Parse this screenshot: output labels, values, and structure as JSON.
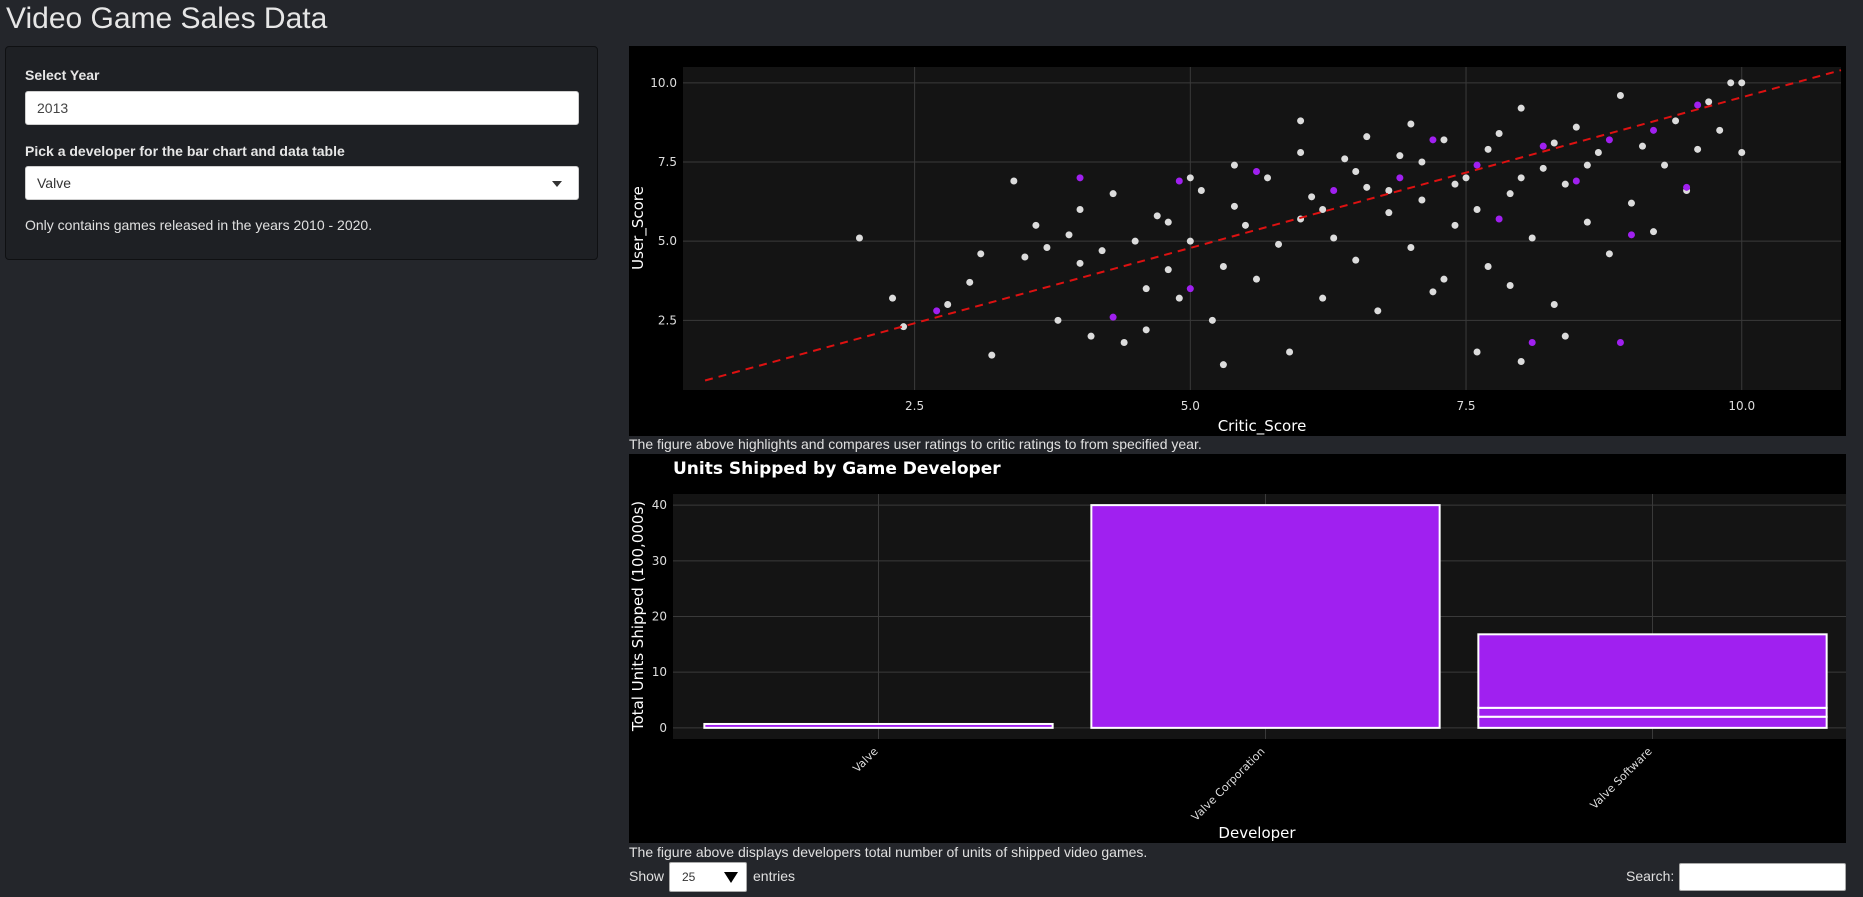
{
  "app": {
    "title": "Video Game Sales Data"
  },
  "sidebar": {
    "year_label": "Select Year",
    "year_value": "2013",
    "developer_label": "Pick a developer for the bar chart and data table",
    "developer_value": "Valve",
    "note": "Only contains games released in the years 2010 - 2020."
  },
  "captions": {
    "scatter": "The figure above highlights and compares user ratings to critic ratings to from specified year.",
    "bar": "The figure above displays developers total number of units of shipped video games."
  },
  "table_controls": {
    "show_label": "Show",
    "length_value": "25",
    "entries_label": "entries",
    "search_label": "Search:"
  },
  "colors": {
    "background": "#24262b",
    "plot_bg": "#141414",
    "accent_purple": "#a020f0",
    "points": "#d9d9d9",
    "trend": "#dd1111"
  },
  "chart_data": [
    {
      "type": "scatter",
      "xlabel": "Critic_Score",
      "ylabel": "User_Score",
      "xlim": [
        0.4,
        10.9
      ],
      "ylim": [
        0.3,
        10.5
      ],
      "xticks": [
        "2.5",
        "5.0",
        "7.5",
        "10.0"
      ],
      "yticks": [
        "2.5",
        "5.0",
        "7.5",
        "10.0"
      ],
      "grid": true,
      "trend_line": {
        "style": "dashed",
        "color": "#dd1111",
        "x": [
          0.6,
          10.9
        ],
        "y": [
          0.6,
          10.4
        ]
      },
      "series": [
        {
          "color": "#dcdcdc",
          "points": [
            [
              2.0,
              5.1
            ],
            [
              2.3,
              3.2
            ],
            [
              2.4,
              2.3
            ],
            [
              2.8,
              3.0
            ],
            [
              3.0,
              3.7
            ],
            [
              3.1,
              4.6
            ],
            [
              3.2,
              1.4
            ],
            [
              3.4,
              6.9
            ],
            [
              3.5,
              4.5
            ],
            [
              3.6,
              5.5
            ],
            [
              3.7,
              4.8
            ],
            [
              3.8,
              2.5
            ],
            [
              3.9,
              5.2
            ],
            [
              4.0,
              6.0
            ],
            [
              4.0,
              4.3
            ],
            [
              4.1,
              2.0
            ],
            [
              4.2,
              4.7
            ],
            [
              4.3,
              6.5
            ],
            [
              4.4,
              1.8
            ],
            [
              4.5,
              5.0
            ],
            [
              4.6,
              3.5
            ],
            [
              4.7,
              5.8
            ],
            [
              4.8,
              4.1
            ],
            [
              4.9,
              3.2
            ],
            [
              5.0,
              5.0
            ],
            [
              5.0,
              7.0
            ],
            [
              5.1,
              6.6
            ],
            [
              5.2,
              2.5
            ],
            [
              5.3,
              4.2
            ],
            [
              5.4,
              6.1
            ],
            [
              5.5,
              5.5
            ],
            [
              5.6,
              3.8
            ],
            [
              5.7,
              7.0
            ],
            [
              5.8,
              4.9
            ],
            [
              5.9,
              1.5
            ],
            [
              6.0,
              5.7
            ],
            [
              6.0,
              8.8
            ],
            [
              6.1,
              6.4
            ],
            [
              6.2,
              3.2
            ],
            [
              6.3,
              5.1
            ],
            [
              6.4,
              7.6
            ],
            [
              6.5,
              4.4
            ],
            [
              6.6,
              6.7
            ],
            [
              6.7,
              2.8
            ],
            [
              6.8,
              5.9
            ],
            [
              6.9,
              7.7
            ],
            [
              7.0,
              4.8
            ],
            [
              7.1,
              6.3
            ],
            [
              7.2,
              3.4
            ],
            [
              7.3,
              8.2
            ],
            [
              7.4,
              5.5
            ],
            [
              7.5,
              7.0
            ],
            [
              7.6,
              6.0
            ],
            [
              7.7,
              4.2
            ],
            [
              7.8,
              8.4
            ],
            [
              7.9,
              6.5
            ],
            [
              8.0,
              9.2
            ],
            [
              8.1,
              5.1
            ],
            [
              8.2,
              7.3
            ],
            [
              8.3,
              3.0
            ],
            [
              8.4,
              6.8
            ],
            [
              8.5,
              8.6
            ],
            [
              8.6,
              5.6
            ],
            [
              8.7,
              7.8
            ],
            [
              8.8,
              4.6
            ],
            [
              8.9,
              9.6
            ],
            [
              9.0,
              6.2
            ],
            [
              9.1,
              8.0
            ],
            [
              9.2,
              5.3
            ],
            [
              9.3,
              7.4
            ],
            [
              9.4,
              8.8
            ],
            [
              9.5,
              6.6
            ],
            [
              9.6,
              7.9
            ],
            [
              9.7,
              9.4
            ],
            [
              9.8,
              8.5
            ],
            [
              9.9,
              10.0
            ],
            [
              10.0,
              10.0
            ],
            [
              10.0,
              7.8
            ],
            [
              6.2,
              6.0
            ],
            [
              6.5,
              7.2
            ],
            [
              6.8,
              6.6
            ],
            [
              7.1,
              7.5
            ],
            [
              7.4,
              6.8
            ],
            [
              7.7,
              7.9
            ],
            [
              8.0,
              7.0
            ],
            [
              8.3,
              8.1
            ],
            [
              8.6,
              7.4
            ],
            [
              7.0,
              8.7
            ],
            [
              6.0,
              7.8
            ],
            [
              5.4,
              7.4
            ],
            [
              4.8,
              5.6
            ],
            [
              7.6,
              1.5
            ],
            [
              8.0,
              1.2
            ],
            [
              5.3,
              1.1
            ],
            [
              4.6,
              2.2
            ],
            [
              6.6,
              8.3
            ],
            [
              7.3,
              3.8
            ],
            [
              7.9,
              3.6
            ],
            [
              8.4,
              2.0
            ]
          ]
        },
        {
          "color": "#a020f0",
          "points": [
            [
              2.7,
              2.8
            ],
            [
              4.0,
              7.0
            ],
            [
              4.3,
              2.6
            ],
            [
              4.9,
              6.9
            ],
            [
              5.0,
              3.5
            ],
            [
              5.6,
              7.2
            ],
            [
              6.3,
              6.6
            ],
            [
              6.9,
              7.0
            ],
            [
              7.2,
              8.2
            ],
            [
              7.6,
              7.4
            ],
            [
              7.8,
              5.7
            ],
            [
              8.2,
              8.0
            ],
            [
              8.5,
              6.9
            ],
            [
              8.8,
              8.2
            ],
            [
              9.0,
              5.2
            ],
            [
              9.2,
              8.5
            ],
            [
              9.5,
              6.7
            ],
            [
              9.6,
              9.3
            ],
            [
              8.1,
              1.8
            ],
            [
              8.9,
              1.8
            ]
          ]
        }
      ]
    },
    {
      "type": "bar",
      "title": "Units Shipped by Game Developer",
      "xlabel": "Developer",
      "ylabel": "Total Units Shipped (100,000s)",
      "categories": [
        "Valve",
        "Valve Corporation",
        "Valve Software"
      ],
      "values": [
        0.7,
        40,
        16.8
      ],
      "stack_segments": [
        [
          0.7
        ],
        [
          40
        ],
        [
          2.0,
          1.6,
          13.2
        ]
      ],
      "ylim": [
        -2,
        42
      ],
      "yticks": [
        0,
        10,
        20,
        30,
        40
      ],
      "grid": true
    }
  ]
}
